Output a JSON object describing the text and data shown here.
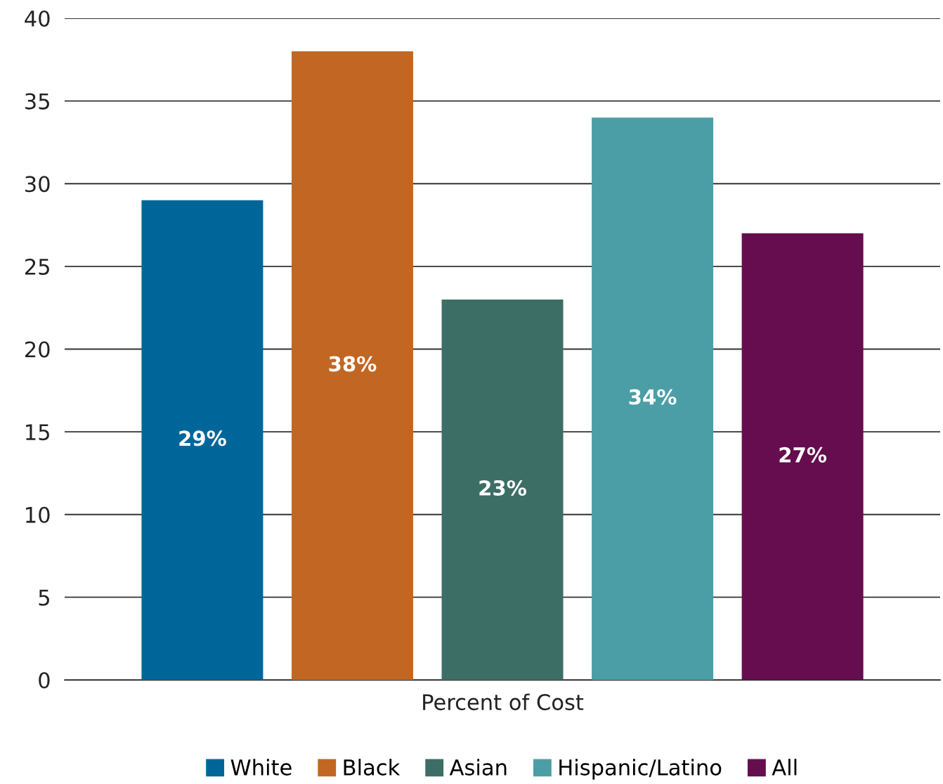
{
  "chart_data": {
    "type": "bar",
    "categories": [
      "Percent of Cost"
    ],
    "series": [
      {
        "name": "White",
        "color": "#006699",
        "values": [
          29
        ],
        "value_labels": [
          "29%"
        ]
      },
      {
        "name": "Black",
        "color": "#c26723",
        "values": [
          38
        ],
        "value_labels": [
          "38%"
        ]
      },
      {
        "name": "Asian",
        "color": "#3d6e66",
        "values": [
          23
        ],
        "value_labels": [
          "23%"
        ]
      },
      {
        "name": "Hispanic/Latino",
        "color": "#4b9ea6",
        "values": [
          34
        ],
        "value_labels": [
          "34%"
        ]
      },
      {
        "name": "All",
        "color": "#650d4e",
        "values": [
          27
        ],
        "value_labels": [
          "27%"
        ]
      }
    ],
    "ylim": [
      0,
      40
    ],
    "yticks": [
      0,
      5,
      10,
      15,
      20,
      25,
      30,
      35,
      40
    ],
    "grid": "y",
    "legend": "bottom"
  }
}
